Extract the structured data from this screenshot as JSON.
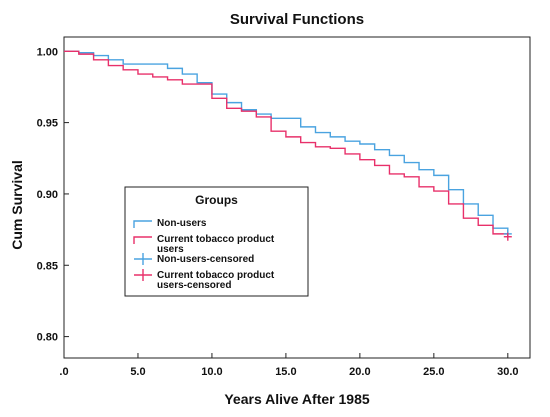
{
  "chart_data": {
    "type": "line",
    "title": "Survival Functions",
    "xlabel": "Years Alive After 1985",
    "ylabel": "Cum Survival",
    "xlim": [
      0,
      31.5
    ],
    "ylim": [
      0.785,
      1.01
    ],
    "x_ticks": [
      {
        "value": 0,
        "label": ".0"
      },
      {
        "value": 5,
        "label": "5.0"
      },
      {
        "value": 10,
        "label": "10.0"
      },
      {
        "value": 15,
        "label": "15.0"
      },
      {
        "value": 20,
        "label": "20.0"
      },
      {
        "value": 25,
        "label": "25.0"
      },
      {
        "value": 30,
        "label": "30.0"
      }
    ],
    "y_ticks": [
      {
        "value": 1.0,
        "label": "1.00"
      },
      {
        "value": 0.95,
        "label": "0.95"
      },
      {
        "value": 0.9,
        "label": "0.90"
      },
      {
        "value": 0.85,
        "label": "0.85"
      },
      {
        "value": 0.8,
        "label": "0.80"
      }
    ],
    "grid": false,
    "legend_position": "left-middle",
    "legend_title": "Groups",
    "legend": [
      {
        "label": "Non-users",
        "color": "#4aa3e0",
        "marker": "step"
      },
      {
        "label": "Current tobacco product users",
        "color": "#e8306a",
        "marker": "step"
      },
      {
        "label": "Non-users-censored",
        "color": "#4aa3e0",
        "marker": "plus"
      },
      {
        "label": "Current tobacco product users-censored",
        "color": "#e8306a",
        "marker": "plus"
      }
    ],
    "series": [
      {
        "name": "Non-users",
        "color": "#4aa3e0",
        "x": [
          0,
          1,
          2,
          3,
          4,
          5,
          6,
          7,
          8,
          9,
          10,
          11,
          12,
          13,
          14,
          15,
          16,
          17,
          18,
          19,
          20,
          21,
          22,
          23,
          24,
          25,
          26,
          27,
          28,
          29,
          30
        ],
        "y": [
          1.0,
          0.999,
          0.997,
          0.994,
          0.991,
          0.991,
          0.991,
          0.988,
          0.984,
          0.978,
          0.97,
          0.964,
          0.959,
          0.956,
          0.953,
          0.953,
          0.947,
          0.943,
          0.94,
          0.937,
          0.935,
          0.931,
          0.927,
          0.922,
          0.917,
          0.913,
          0.903,
          0.893,
          0.885,
          0.876,
          0.872
        ]
      },
      {
        "name": "Current tobacco product users",
        "color": "#e8306a",
        "x": [
          0,
          1,
          2,
          3,
          4,
          5,
          6,
          7,
          8,
          9,
          10,
          11,
          12,
          13,
          14,
          15,
          16,
          17,
          18,
          19,
          20,
          21,
          22,
          23,
          24,
          25,
          26,
          27,
          28,
          29,
          30
        ],
        "y": [
          1.0,
          0.998,
          0.994,
          0.99,
          0.987,
          0.984,
          0.982,
          0.98,
          0.977,
          0.977,
          0.967,
          0.96,
          0.958,
          0.954,
          0.944,
          0.94,
          0.936,
          0.933,
          0.932,
          0.928,
          0.924,
          0.92,
          0.914,
          0.912,
          0.905,
          0.902,
          0.893,
          0.883,
          0.878,
          0.872,
          0.87
        ]
      }
    ],
    "censored_points": [
      {
        "series": "Non-users",
        "x": 30,
        "y": 0.872
      },
      {
        "series": "Current tobacco product users",
        "x": 30,
        "y": 0.87
      }
    ]
  }
}
